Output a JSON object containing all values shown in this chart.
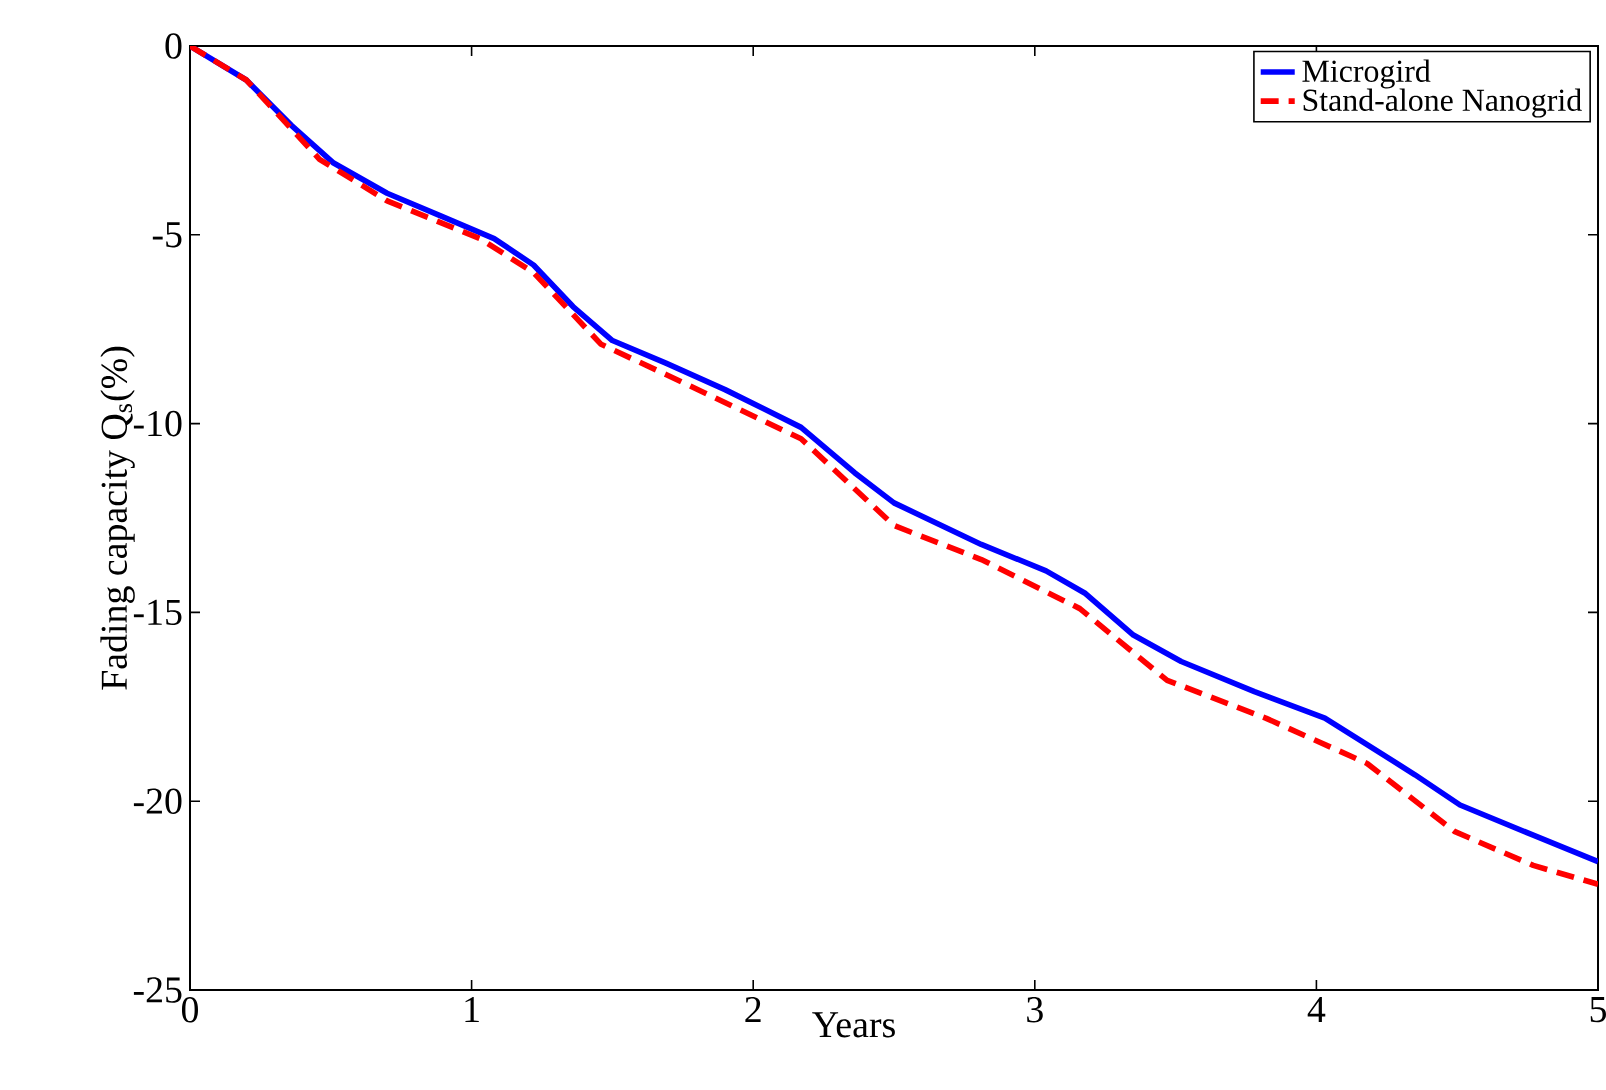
{
  "chart_data": {
    "type": "line",
    "xlabel": "Years",
    "ylabel": "Fading capacity Q$_{s}$(%)",
    "xlim": [
      0,
      5
    ],
    "ylim": [
      -25,
      0
    ],
    "xticks": [
      0,
      1,
      2,
      3,
      4,
      5
    ],
    "yticks": [
      -25,
      -20,
      -15,
      -10,
      -5,
      0
    ],
    "grid": false,
    "legend": "top right",
    "marker": "none",
    "series": [
      {
        "name": "Microgird",
        "color": "#0000ff",
        "line_style": "solid",
        "x": [
          0,
          0.2,
          0.36,
          0.51,
          0.7,
          0.89,
          1.08,
          1.22,
          1.36,
          1.5,
          1.69,
          1.9,
          2.17,
          2.36,
          2.5,
          2.81,
          3.04,
          3.18,
          3.35,
          3.52,
          3.78,
          4.03,
          4.18,
          4.35,
          4.51,
          4.77,
          5
        ],
        "values": [
          0,
          -0.9,
          -2.1,
          -3.1,
          -3.9,
          -4.5,
          -5.1,
          -5.8,
          -6.9,
          -7.8,
          -8.4,
          -9.1,
          -10.1,
          -11.3,
          -12.1,
          -13.2,
          -13.9,
          -14.5,
          -15.6,
          -16.3,
          -17.1,
          -17.8,
          -18.5,
          -19.3,
          -20.1,
          -20.9,
          -21.6
        ]
      },
      {
        "name": "Stand-alone Nanogrid",
        "color": "#ff0000",
        "line_style": "dashed",
        "x": [
          0,
          0.2,
          0.46,
          0.7,
          1.03,
          1.22,
          1.46,
          1.69,
          2.17,
          2.5,
          2.81,
          3.16,
          3.47,
          3.82,
          4.18,
          4.49,
          4.77,
          5
        ],
        "values": [
          0,
          -0.9,
          -3.0,
          -4.1,
          -5.1,
          -6.0,
          -7.9,
          -8.7,
          -10.4,
          -12.7,
          -13.6,
          -14.9,
          -16.8,
          -17.8,
          -19.0,
          -20.8,
          -21.7,
          -22.2
        ]
      }
    ]
  }
}
